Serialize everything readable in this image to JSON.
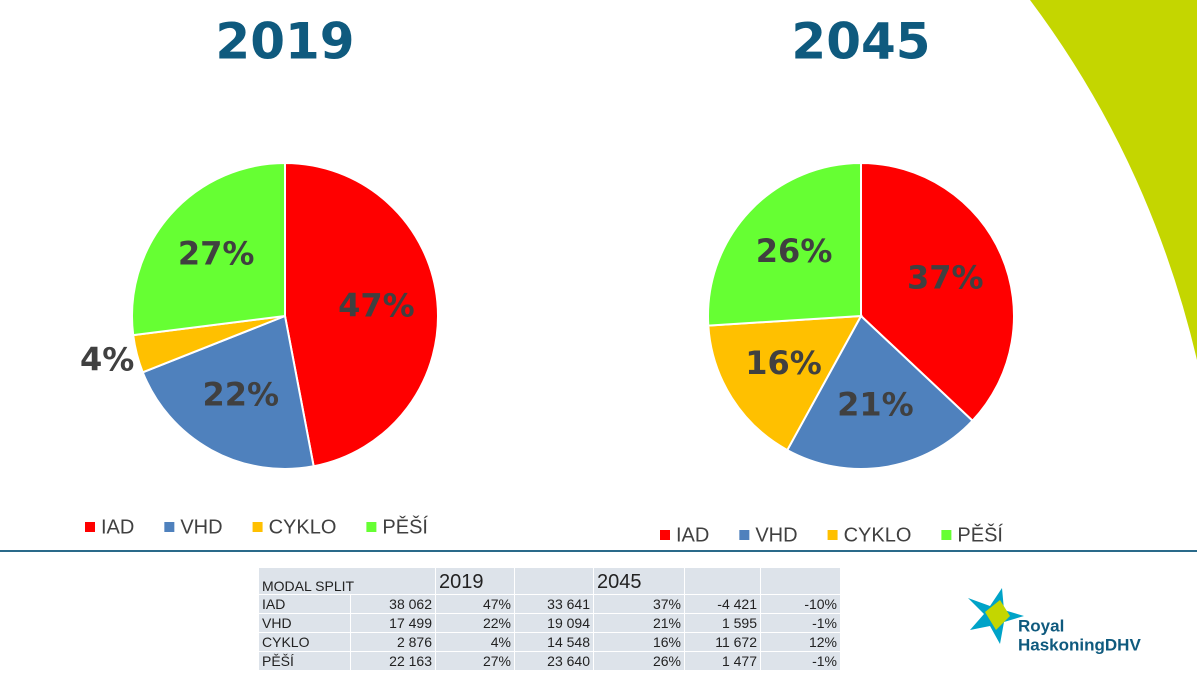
{
  "chart_data": [
    {
      "type": "pie",
      "title": "2019",
      "categories": [
        "IAD",
        "VHD",
        "CYKLO",
        "PĚŠÍ"
      ],
      "values": [
        47,
        22,
        4,
        27
      ],
      "value_labels": [
        "47%",
        "22%",
        "4%",
        "27%"
      ],
      "colors": [
        "#ff0000",
        "#4f81bd",
        "#ffc000",
        "#66ff33"
      ],
      "legend": "bottom"
    },
    {
      "type": "pie",
      "title": "2045",
      "categories": [
        "IAD",
        "VHD",
        "CYKLO",
        "PĚŠÍ"
      ],
      "values": [
        37,
        21,
        16,
        26
      ],
      "value_labels": [
        "37%",
        "21%",
        "16%",
        "26%"
      ],
      "colors": [
        "#ff0000",
        "#4f81bd",
        "#ffc000",
        "#66ff33"
      ],
      "legend": "bottom"
    }
  ],
  "table": {
    "title": "MODAL SPLIT",
    "years": [
      "2019",
      "2045"
    ],
    "rows": [
      [
        "IAD",
        "38 062",
        "47%",
        "33 641",
        "37%",
        "-4 421",
        "-10%"
      ],
      [
        "VHD",
        "17 499",
        "22%",
        "19 094",
        "21%",
        "1 595",
        "-1%"
      ],
      [
        "CYKLO",
        "2 876",
        "4%",
        "14 548",
        "16%",
        "11 672",
        "12%"
      ],
      [
        "PĚŠÍ",
        "22 163",
        "27%",
        "23 640",
        "26%",
        "1 477",
        "-1%"
      ]
    ]
  },
  "logo": {
    "lines": [
      "Royal",
      "HaskoningDHV"
    ]
  }
}
